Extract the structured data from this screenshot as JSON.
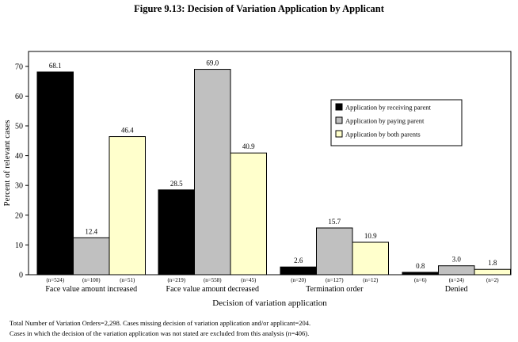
{
  "chart_data": {
    "type": "bar",
    "title": "Figure 9.13:  Decision of Variation Application by Applicant",
    "xlabel": "Decision of variation application",
    "ylabel": "Percent of relevant cases",
    "ylim": [
      0,
      75
    ],
    "yticks": [
      0,
      10,
      20,
      30,
      40,
      50,
      60,
      70
    ],
    "grid": false,
    "legend_position": "right",
    "categories": [
      "Face value amount increased",
      "Face value amount decreased",
      "Termination order",
      "Denied"
    ],
    "series": [
      {
        "name": "Application by receiving parent",
        "color": "#000000",
        "values": [
          68.1,
          28.5,
          2.6,
          0.8
        ],
        "value_labels": [
          "68.1",
          "28.5",
          "2.6",
          "0.8"
        ],
        "n_labels": [
          "(n=524)",
          "(n=219)",
          "(n=20)",
          "(n=6)"
        ]
      },
      {
        "name": "Application by paying parent",
        "color": "#c0c0c0",
        "values": [
          12.4,
          69.0,
          15.7,
          3.0
        ],
        "value_labels": [
          "12.4",
          "69.0",
          "15.7",
          "3.0"
        ],
        "n_labels": [
          "(n=100)",
          "(n=558)",
          "(n=127)",
          "(n=24)"
        ]
      },
      {
        "name": "Application by both parents",
        "color": "#ffffcc",
        "values": [
          46.4,
          40.9,
          10.9,
          1.8
        ],
        "value_labels": [
          "46.4",
          "40.9",
          "10.9",
          "1.8"
        ],
        "n_labels": [
          "(n=51)",
          "(n=45)",
          "(n=12)",
          "(n=2)"
        ]
      }
    ]
  },
  "notes": {
    "line1": "Total Number of Variation Orders=2,298.  Cases missing decision of variation application and/or applicant=204.",
    "line2": "Cases in which the decision of the variation application was not stated are excluded from this analysis (n=406)."
  }
}
